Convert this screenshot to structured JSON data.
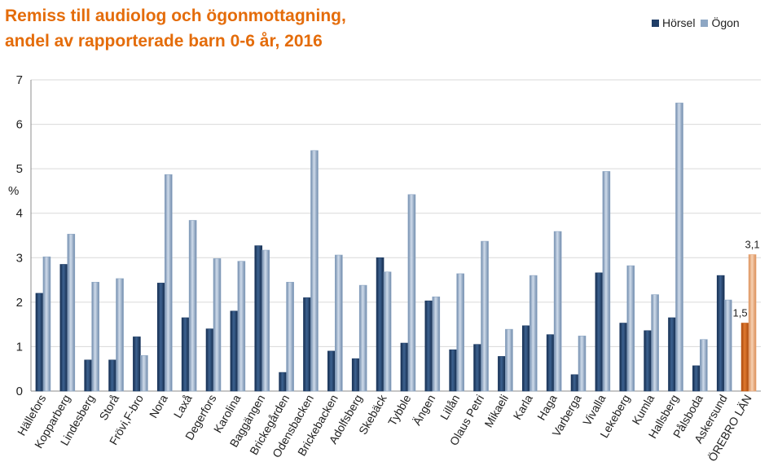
{
  "chart_data": {
    "type": "bar",
    "title_lines": [
      "Remiss till audiolog och ögonmottagning,",
      "andel av rapporterade barn 0-6 år, 2016"
    ],
    "ylabel": "%",
    "ylim": [
      0,
      7
    ],
    "yticks": [
      0,
      1,
      2,
      3,
      4,
      5,
      6,
      7
    ],
    "categories": [
      "Hällefors",
      "Kopparberg",
      "Lindesberg",
      "Storå",
      "Frövi,F-bro",
      "Nora",
      "Laxå",
      "Degerfors",
      "Karolina",
      "Baggängen",
      "Brickegården",
      "Odensbacken",
      "Brickebacken",
      "Adolfsberg",
      "Skebäck",
      "Tybble",
      "Ängen",
      "Lillån",
      "Olaus Petri",
      "Mikaeli",
      "Karla",
      "Haga",
      "Varberga",
      "Vivalla",
      "Lekeberg",
      "Kumla",
      "Hallsberg",
      "Pålsboda",
      "Askersund",
      "ÖREBRO LÄN"
    ],
    "series": [
      {
        "name": "Hörsel",
        "color": "#1f3d66",
        "highlight_color": "#c55a11",
        "values": [
          2.2,
          2.85,
          0.7,
          0.7,
          1.22,
          2.43,
          1.65,
          1.4,
          1.8,
          3.27,
          0.42,
          2.1,
          0.9,
          0.73,
          3.0,
          1.08,
          2.03,
          0.93,
          1.05,
          0.78,
          1.47,
          1.27,
          0.37,
          2.66,
          1.53,
          1.36,
          1.65,
          0.57,
          2.6,
          1.53
        ]
      },
      {
        "name": "Ögon",
        "color": "#8ea7c4",
        "highlight_color": "#e9a778",
        "values": [
          3.02,
          3.53,
          2.45,
          2.53,
          0.8,
          4.87,
          3.84,
          2.98,
          2.92,
          3.17,
          2.45,
          5.41,
          3.06,
          2.38,
          2.68,
          4.42,
          2.12,
          2.64,
          3.37,
          1.39,
          2.6,
          3.59,
          1.24,
          4.94,
          2.82,
          2.17,
          6.48,
          1.16,
          2.05,
          3.07
        ]
      }
    ],
    "highlight_category": "ÖREBRO LÄN",
    "data_labels": [
      {
        "category": "ÖREBRO LÄN",
        "series": "Hörsel",
        "text": "1,5"
      },
      {
        "category": "ÖREBRO LÄN",
        "series": "Ögon",
        "text": "3,1"
      }
    ],
    "legend_position": "top-right",
    "grid": true
  }
}
